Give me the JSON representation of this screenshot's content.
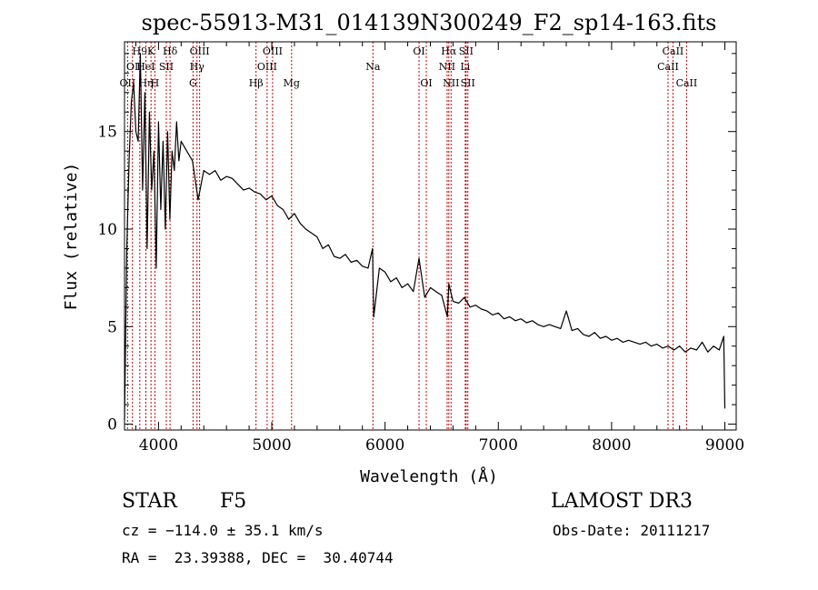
{
  "chart_data": {
    "type": "line",
    "title": "spec-55913-M31_014139N300249_F2_sp14-163.fits",
    "xlabel": "Wavelength (Å)",
    "ylabel": "Flux (relative)",
    "xlim": [
      3700,
      9100
    ],
    "ylim": [
      -0.3,
      19.6
    ],
    "xticks": [
      4000,
      5000,
      6000,
      7000,
      8000,
      9000
    ],
    "yticks": [
      0,
      5,
      10,
      15
    ],
    "grid": false,
    "legend": "none",
    "line_color": "#000000",
    "marker_color": "#cc0000",
    "lines": [
      {
        "label": "OII",
        "wl": 3727,
        "row": 3
      },
      {
        "label": "H9",
        "wl": 3835,
        "row": 1
      },
      {
        "label": "OI",
        "wl": 3770,
        "row": 2
      },
      {
        "label": "Hη",
        "wl": 3889,
        "row": 3
      },
      {
        "label": "K",
        "wl": 3934,
        "row": 1
      },
      {
        "label": "HeI",
        "wl": 3888,
        "row": 2
      },
      {
        "label": "H",
        "wl": 3968,
        "row": 3
      },
      {
        "label": "SII",
        "wl": 4069,
        "row": 2
      },
      {
        "label": "Hδ",
        "wl": 4102,
        "row": 1
      },
      {
        "label": "OIII",
        "wl": 4363,
        "row": 1
      },
      {
        "label": "Hγ",
        "wl": 4340,
        "row": 2
      },
      {
        "label": "G",
        "wl": 4305,
        "row": 3
      },
      {
        "label": "Hβ",
        "wl": 4861,
        "row": 3
      },
      {
        "label": "OIII",
        "wl": 5007,
        "row": 1
      },
      {
        "label": "OIII",
        "wl": 4959,
        "row": 2
      },
      {
        "label": "Mg",
        "wl": 5175,
        "row": 3
      },
      {
        "label": "Na",
        "wl": 5893,
        "row": 2
      },
      {
        "label": "OI",
        "wl": 6300,
        "row": 1
      },
      {
        "label": "OI",
        "wl": 6364,
        "row": 3
      },
      {
        "label": "Hα",
        "wl": 6563,
        "row": 1
      },
      {
        "label": "NII",
        "wl": 6548,
        "row": 2
      },
      {
        "label": "NII",
        "wl": 6583,
        "row": 3
      },
      {
        "label": "SII",
        "wl": 6716,
        "row": 1
      },
      {
        "label": "Li",
        "wl": 6708,
        "row": 2
      },
      {
        "label": "SII",
        "wl": 6731,
        "row": 3
      },
      {
        "label": "CaII",
        "wl": 8542,
        "row": 1
      },
      {
        "label": "CaII",
        "wl": 8498,
        "row": 2
      },
      {
        "label": "CaII",
        "wl": 8662,
        "row": 3
      }
    ],
    "spectrum": {
      "x": [
        3700,
        3720,
        3740,
        3760,
        3780,
        3800,
        3820,
        3840,
        3860,
        3880,
        3900,
        3920,
        3940,
        3960,
        3980,
        4000,
        4020,
        4040,
        4060,
        4080,
        4100,
        4120,
        4140,
        4160,
        4180,
        4200,
        4250,
        4300,
        4350,
        4400,
        4450,
        4500,
        4550,
        4600,
        4650,
        4700,
        4750,
        4800,
        4850,
        4900,
        4950,
        5000,
        5050,
        5100,
        5150,
        5200,
        5250,
        5300,
        5350,
        5400,
        5450,
        5500,
        5550,
        5600,
        5650,
        5700,
        5750,
        5800,
        5850,
        5890,
        5900,
        5950,
        6000,
        6050,
        6100,
        6150,
        6200,
        6250,
        6300,
        6350,
        6400,
        6450,
        6500,
        6550,
        6563,
        6600,
        6650,
        6700,
        6750,
        6800,
        6850,
        6900,
        6950,
        7000,
        7050,
        7100,
        7150,
        7200,
        7250,
        7300,
        7350,
        7400,
        7450,
        7500,
        7550,
        7600,
        7650,
        7700,
        7750,
        7800,
        7850,
        7900,
        7950,
        8000,
        8050,
        8100,
        8150,
        8200,
        8250,
        8300,
        8350,
        8400,
        8450,
        8500,
        8550,
        8600,
        8650,
        8700,
        8750,
        8800,
        8850,
        8900,
        8950,
        8990,
        9000
      ],
      "y": [
        0.2,
        9.0,
        13.5,
        16.5,
        17.5,
        15.0,
        14.5,
        19.0,
        12.0,
        17.0,
        9.0,
        16.0,
        12.0,
        14.0,
        8.0,
        15.5,
        11.0,
        14.5,
        10.0,
        15.0,
        10.5,
        14.0,
        13.0,
        15.5,
        13.5,
        14.5,
        14.0,
        13.5,
        11.5,
        13.0,
        12.8,
        13.0,
        12.5,
        12.7,
        12.6,
        12.3,
        12.0,
        12.1,
        11.9,
        11.8,
        11.5,
        11.7,
        11.2,
        11.0,
        10.5,
        10.8,
        10.3,
        10.0,
        9.8,
        9.6,
        9.0,
        9.2,
        8.6,
        8.5,
        8.7,
        8.3,
        8.4,
        8.1,
        8.0,
        9.0,
        5.5,
        8.0,
        7.8,
        7.3,
        7.5,
        7.0,
        7.2,
        6.8,
        8.5,
        6.5,
        7.0,
        6.8,
        6.6,
        5.5,
        7.2,
        6.3,
        6.2,
        6.5,
        6.0,
        6.1,
        5.9,
        5.8,
        5.6,
        5.7,
        5.4,
        5.5,
        5.3,
        5.4,
        5.2,
        5.3,
        5.1,
        5.0,
        5.1,
        5.0,
        4.9,
        5.8,
        4.8,
        4.9,
        4.6,
        4.5,
        4.7,
        4.4,
        4.5,
        4.3,
        4.4,
        4.2,
        4.3,
        4.2,
        4.1,
        4.2,
        4.0,
        4.1,
        3.9,
        4.0,
        3.8,
        4.0,
        3.7,
        3.9,
        3.8,
        4.2,
        3.7,
        4.0,
        3.8,
        4.5,
        0.8
      ]
    }
  },
  "info": {
    "class_label": "STAR",
    "subclass": "F5",
    "survey": "LAMOST DR3",
    "cz": "cz = −114.0 ± 35.1 km/s",
    "obs_date": "Obs-Date: 20111217",
    "radec": "RA =  23.39388, DEC =  30.40744"
  }
}
